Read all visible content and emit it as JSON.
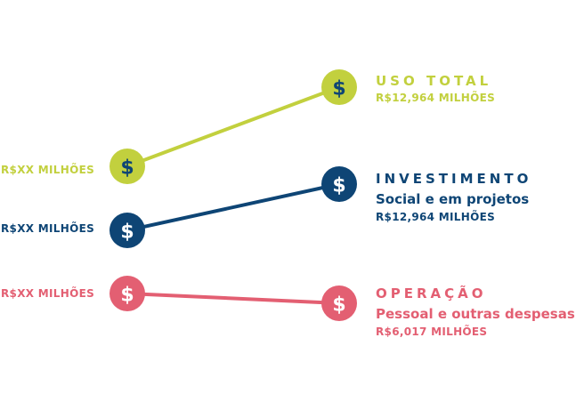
{
  "colors": {
    "uso": "#c2d03e",
    "investimento": "#0e4575",
    "operacao": "#e35f72"
  },
  "icon": "dollar-icon",
  "rows": [
    {
      "key": "uso",
      "left_value": "R$XX MILHÕES",
      "title": "USO TOTAL",
      "subtitle": "",
      "value": "R$12,964 MILHÕES"
    },
    {
      "key": "investimento",
      "left_value": "R$XX MILHÕES",
      "title": "INVESTIMENTO",
      "subtitle": "Social e em projetos",
      "value": "R$12,964 MILHÕES"
    },
    {
      "key": "operacao",
      "left_value": "R$XX MILHÕES",
      "title": "OPERAÇÃO",
      "subtitle": "Pessoal e outras despesas",
      "value": "R$6,017 MILHÕES"
    }
  ]
}
